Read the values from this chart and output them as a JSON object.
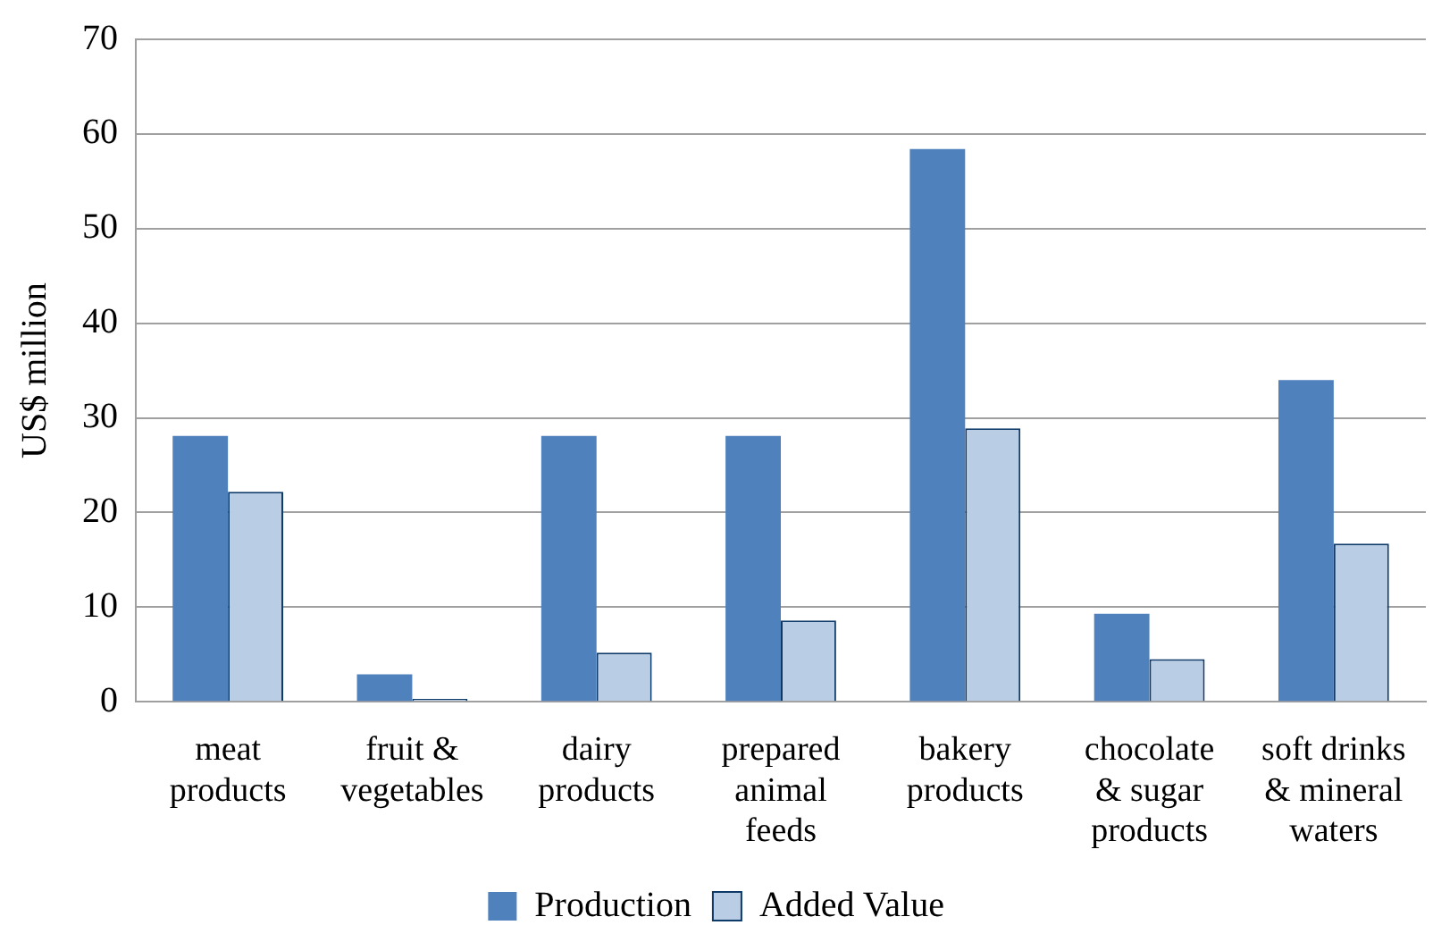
{
  "chart_data": {
    "type": "bar",
    "ylabel": "US$ million",
    "categories": [
      "meat products",
      "fruit & vegetables",
      "dairy products",
      "prepared animal feeds",
      "bakery products",
      "chocolate & sugar products",
      "soft drinks & mineral waters"
    ],
    "series": [
      {
        "name": "Production",
        "color": "#4f81bd",
        "values": [
          28.1,
          2.9,
          28.1,
          28.1,
          58.4,
          9.3,
          34.0
        ]
      },
      {
        "name": "Added Value",
        "color": "#b9cde5",
        "values": [
          22.2,
          0.3,
          5.2,
          8.6,
          28.9,
          4.5,
          16.7
        ]
      }
    ],
    "ylim": [
      0,
      70
    ],
    "yticks": [
      0,
      10,
      20,
      30,
      40,
      50,
      60,
      70
    ],
    "grid": "y",
    "legend": "bottom"
  }
}
